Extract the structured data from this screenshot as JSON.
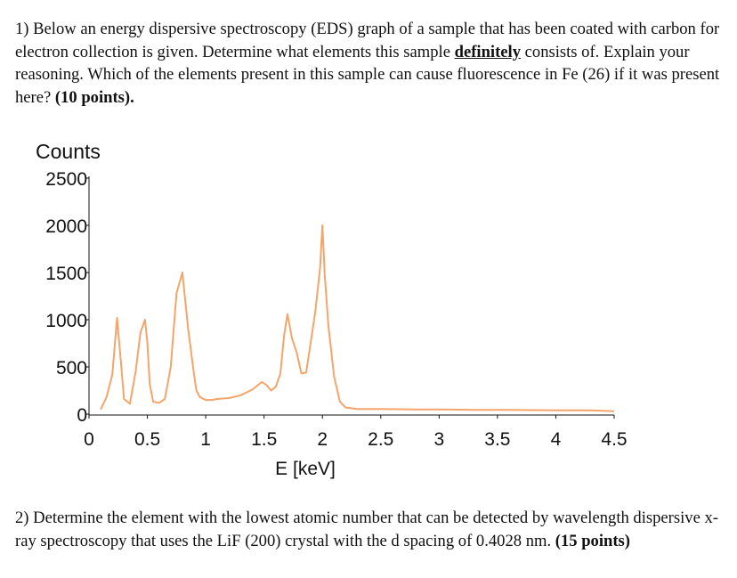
{
  "question1": {
    "prefix": "1) Below an energy dispersive spectroscopy (EDS) graph of a sample that has been coated with carbon for electron collection is given. Determine what elements this sample ",
    "emphasis": "definitely",
    "middle": " consists of. Explain your reasoning. Which of the elements present in this sample can cause fluorescence in Fe (26) if it was present here? ",
    "points": "(10 points)."
  },
  "question2": {
    "text": "2) Determine the element with the lowest atomic number that can be detected by wavelength dispersive x-ray spectroscopy that uses the LiF (200) crystal with the d spacing of 0.4028 nm. ",
    "points": "(15 points)"
  },
  "chart_data": {
    "type": "line",
    "title": "",
    "ylabel": "Counts",
    "xlabel": "E [keV]",
    "xlim": [
      0,
      4.5
    ],
    "ylim": [
      0,
      2500
    ],
    "x_ticks": [
      "0",
      "0.5",
      "1",
      "1.5",
      "2",
      "2.5",
      "3",
      "3.5",
      "4",
      "4.5"
    ],
    "y_ticks": [
      "0",
      "500",
      "1000",
      "1500",
      "2000",
      "2500"
    ],
    "grid": false,
    "color": "#f5a46a",
    "series": [
      {
        "x": [
          0.1,
          0.15,
          0.2,
          0.24,
          0.27,
          0.3,
          0.35,
          0.4,
          0.44,
          0.48,
          0.5,
          0.52,
          0.55,
          0.6,
          0.65,
          0.7,
          0.75,
          0.8,
          0.85,
          0.9,
          0.92,
          0.95,
          1.0,
          1.05,
          1.1,
          1.2,
          1.3,
          1.4,
          1.48,
          1.52,
          1.56,
          1.6,
          1.64,
          1.67,
          1.7,
          1.74,
          1.78,
          1.82,
          1.86,
          1.9,
          1.94,
          1.98,
          2.0,
          2.02,
          2.05,
          2.1,
          2.15,
          2.2,
          2.3,
          2.5,
          2.8,
          3.0,
          3.3,
          3.6,
          4.0,
          4.3,
          4.5
        ],
        "y": [
          50,
          180,
          420,
          1020,
          600,
          160,
          110,
          450,
          860,
          1000,
          750,
          320,
          130,
          120,
          160,
          500,
          1280,
          1500,
          900,
          420,
          250,
          180,
          150,
          150,
          160,
          170,
          200,
          260,
          340,
          310,
          250,
          290,
          430,
          820,
          1060,
          800,
          650,
          430,
          440,
          760,
          1100,
          1550,
          2000,
          1480,
          950,
          400,
          130,
          70,
          55,
          55,
          50,
          50,
          45,
          45,
          40,
          40,
          30
        ]
      }
    ]
  }
}
